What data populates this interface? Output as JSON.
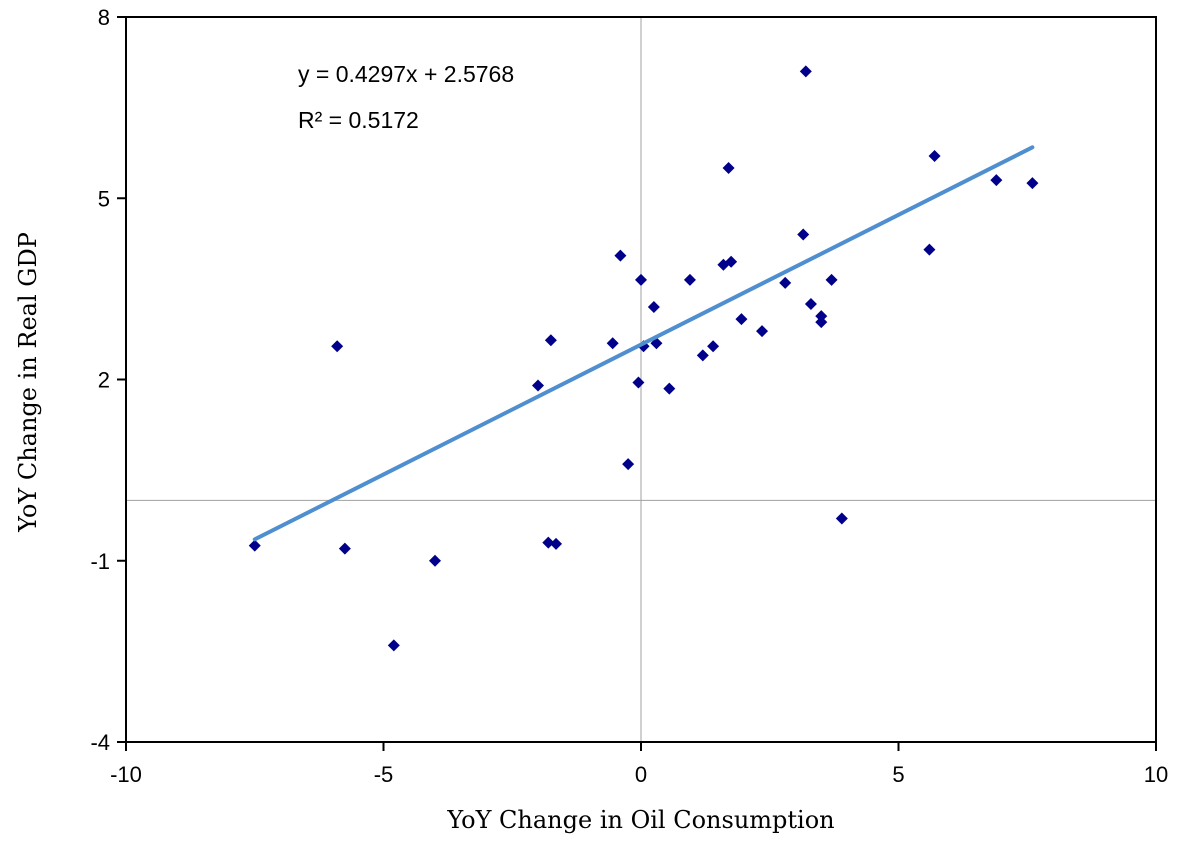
{
  "chart_data": {
    "type": "scatter",
    "title": "",
    "xlabel": "YoY Change in Oil Consumption",
    "ylabel": "YoY Change in Real GDP",
    "xlim": [
      -10,
      10
    ],
    "ylim": [
      -4,
      8
    ],
    "x_ticks": [
      -10,
      -5,
      0,
      5,
      10
    ],
    "y_ticks": [
      8,
      5,
      2,
      -1,
      -4
    ],
    "x_tick_labels": [
      "-10",
      "-5",
      "0",
      "5",
      "10"
    ],
    "y_tick_labels": [
      "8",
      "5",
      "2",
      "-1",
      "-4"
    ],
    "grid": false,
    "zero_lines": true,
    "legend": "none",
    "colors": {
      "points": "#00008b",
      "trendline": "#4f8fd0",
      "zero_lines": "#a0a0a0"
    },
    "series": [
      {
        "points": [
          [
            -7.5,
            -0.75
          ],
          [
            -5.9,
            2.55
          ],
          [
            -5.75,
            -0.8
          ],
          [
            -4.8,
            -2.4
          ],
          [
            -4.0,
            -1.0
          ],
          [
            -2.0,
            1.9
          ],
          [
            -1.75,
            2.65
          ],
          [
            -1.8,
            -0.7
          ],
          [
            -1.65,
            -0.72
          ],
          [
            -0.55,
            2.6
          ],
          [
            -0.4,
            4.05
          ],
          [
            -0.25,
            0.6
          ],
          [
            -0.05,
            1.95
          ],
          [
            0.0,
            3.65
          ],
          [
            0.05,
            2.55
          ],
          [
            0.25,
            3.2
          ],
          [
            0.3,
            2.6
          ],
          [
            0.55,
            1.85
          ],
          [
            0.95,
            3.65
          ],
          [
            1.2,
            2.4
          ],
          [
            1.4,
            2.55
          ],
          [
            1.6,
            3.9
          ],
          [
            1.7,
            5.5
          ],
          [
            1.75,
            3.95
          ],
          [
            1.95,
            3.0
          ],
          [
            2.35,
            2.8
          ],
          [
            2.8,
            3.6
          ],
          [
            3.15,
            4.4
          ],
          [
            3.2,
            7.1
          ],
          [
            3.3,
            3.25
          ],
          [
            3.5,
            2.95
          ],
          [
            3.5,
            3.05
          ],
          [
            3.7,
            3.65
          ],
          [
            3.9,
            -0.3
          ],
          [
            5.6,
            4.15
          ],
          [
            5.7,
            5.7
          ],
          [
            6.9,
            5.3
          ],
          [
            7.6,
            5.25
          ]
        ]
      }
    ],
    "trendline": {
      "slope": 0.4297,
      "intercept": 2.5768,
      "x_range": [
        -7.5,
        7.6
      ]
    },
    "annotations": [
      "y = 0.4297x + 2.5768",
      "R² = 0.5172"
    ]
  }
}
